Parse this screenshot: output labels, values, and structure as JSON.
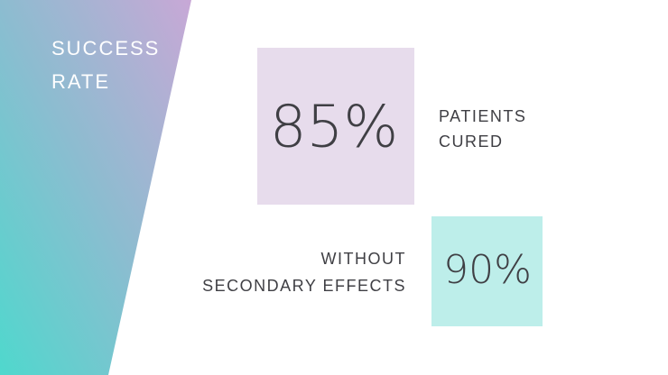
{
  "title": [
    "SUCCESS",
    "RATE"
  ],
  "stats": [
    {
      "value": "85%",
      "label": [
        "PATIENTS",
        "CURED"
      ]
    },
    {
      "value": "90%",
      "label": [
        "WITHOUT",
        "SECONDARY EFFECTS"
      ]
    }
  ]
}
